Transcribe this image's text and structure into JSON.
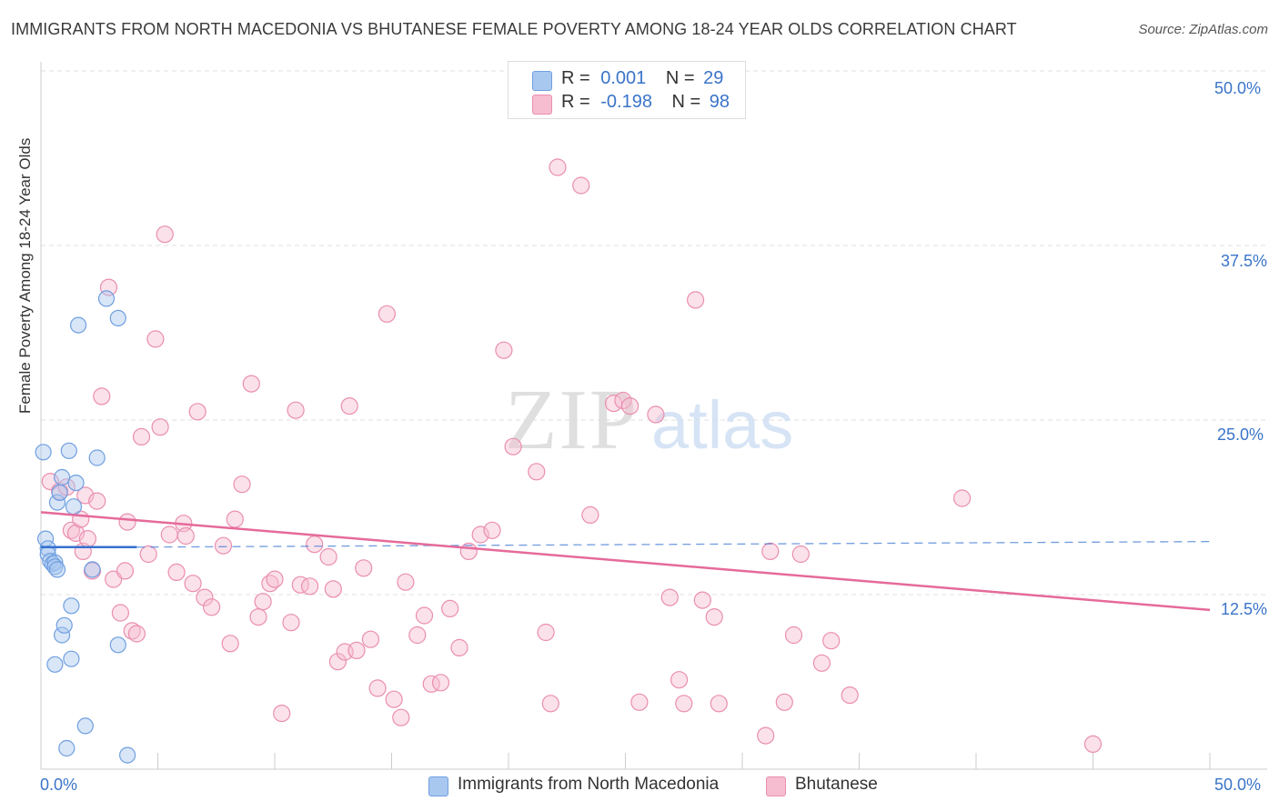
{
  "header": {
    "title": "IMMIGRANTS FROM NORTH MACEDONIA VS BHUTANESE FEMALE POVERTY AMONG 18-24 YEAR OLDS CORRELATION CHART",
    "source": "Source: ZipAtlas.com"
  },
  "watermark": {
    "zip": "ZIP",
    "atlas": "atlas"
  },
  "legend_top": {
    "rows": [
      {
        "r_label": "R =",
        "r_value": "0.001",
        "n_label": "N =",
        "n_value": "29"
      },
      {
        "r_label": "R =",
        "r_value": "-0.198",
        "n_label": "N =",
        "n_value": "98"
      }
    ]
  },
  "legend_bottom": {
    "series1": "Immigrants from North Macedonia",
    "series2": "Bhutanese"
  },
  "colors": {
    "blue_fill": "#a9c8f0",
    "blue_stroke": "#6f9fe0",
    "blue_line": "#3570d0",
    "pink_fill": "#f6bdd0",
    "pink_stroke": "#ea8eb0",
    "pink_line": "#e56a9a",
    "axis_label": "#3a74c9",
    "grid": "#dfdfdf"
  },
  "chart_data": {
    "type": "scatter",
    "title": "IMMIGRANTS FROM NORTH MACEDONIA VS BHUTANESE FEMALE POVERTY AMONG 18-24 YEAR OLDS CORRELATION CHART",
    "xlabel": "",
    "ylabel": "Female Poverty Among 18-24 Year Olds",
    "xlim": [
      0,
      50
    ],
    "ylim": [
      0,
      50
    ],
    "x_tick_labels": [
      "0.0%",
      "50.0%"
    ],
    "y_tick_labels": [
      "12.5%",
      "25.0%",
      "37.5%",
      "50.0%"
    ],
    "y_ticks": [
      12.5,
      25.0,
      37.5,
      50.0
    ],
    "grid": true,
    "legend_position": "top-center",
    "series": [
      {
        "name": "Immigrants from North Macedonia",
        "color": "blue",
        "r": 0.001,
        "n": 29,
        "trend": {
          "x0": 0.0,
          "y0": 15.9,
          "x1": 4.1,
          "y1": 15.9,
          "dashed_to_x": 50.0,
          "dashed_end_y": 16.3
        },
        "points": [
          [
            0.1,
            22.7
          ],
          [
            0.2,
            16.5
          ],
          [
            0.3,
            15.8
          ],
          [
            0.3,
            15.4
          ],
          [
            0.4,
            14.9
          ],
          [
            0.5,
            14.7
          ],
          [
            0.6,
            14.8
          ],
          [
            0.6,
            14.5
          ],
          [
            0.7,
            14.3
          ],
          [
            0.7,
            19.1
          ],
          [
            0.8,
            19.8
          ],
          [
            0.9,
            20.9
          ],
          [
            0.9,
            9.6
          ],
          [
            1.0,
            10.3
          ],
          [
            1.1,
            1.5
          ],
          [
            1.2,
            22.8
          ],
          [
            1.3,
            7.9
          ],
          [
            1.3,
            11.7
          ],
          [
            1.4,
            18.8
          ],
          [
            1.5,
            20.5
          ],
          [
            1.6,
            31.8
          ],
          [
            1.9,
            3.1
          ],
          [
            2.2,
            14.3
          ],
          [
            2.4,
            22.3
          ],
          [
            2.8,
            33.7
          ],
          [
            3.3,
            32.3
          ],
          [
            3.3,
            8.9
          ],
          [
            3.7,
            1.0
          ],
          [
            0.6,
            7.5
          ]
        ]
      },
      {
        "name": "Bhutanese",
        "color": "pink",
        "r": -0.198,
        "n": 98,
        "trend": {
          "x0": 0.0,
          "y0": 18.4,
          "x1": 50.0,
          "y1": 11.4
        },
        "points": [
          [
            0.4,
            20.6
          ],
          [
            0.8,
            19.9
          ],
          [
            1.1,
            20.2
          ],
          [
            1.3,
            17.1
          ],
          [
            1.5,
            16.9
          ],
          [
            1.7,
            17.9
          ],
          [
            1.8,
            15.6
          ],
          [
            1.9,
            19.6
          ],
          [
            2.0,
            16.5
          ],
          [
            2.2,
            14.2
          ],
          [
            2.4,
            19.2
          ],
          [
            2.6,
            26.7
          ],
          [
            2.9,
            34.5
          ],
          [
            3.1,
            13.6
          ],
          [
            3.4,
            11.2
          ],
          [
            3.6,
            14.2
          ],
          [
            3.7,
            17.7
          ],
          [
            3.9,
            9.9
          ],
          [
            4.1,
            9.7
          ],
          [
            4.3,
            23.8
          ],
          [
            4.6,
            15.4
          ],
          [
            4.9,
            30.8
          ],
          [
            5.1,
            24.5
          ],
          [
            5.3,
            38.3
          ],
          [
            5.5,
            16.8
          ],
          [
            5.8,
            14.1
          ],
          [
            6.1,
            17.6
          ],
          [
            6.2,
            16.7
          ],
          [
            6.5,
            13.3
          ],
          [
            6.7,
            25.6
          ],
          [
            7.0,
            12.3
          ],
          [
            7.3,
            11.6
          ],
          [
            7.8,
            16.0
          ],
          [
            8.1,
            9.0
          ],
          [
            8.3,
            17.9
          ],
          [
            8.6,
            20.4
          ],
          [
            9.0,
            27.6
          ],
          [
            9.3,
            10.9
          ],
          [
            9.5,
            12.0
          ],
          [
            9.8,
            13.3
          ],
          [
            10.0,
            13.6
          ],
          [
            10.3,
            4.0
          ],
          [
            10.7,
            10.5
          ],
          [
            10.9,
            25.7
          ],
          [
            11.1,
            13.2
          ],
          [
            11.5,
            13.1
          ],
          [
            11.7,
            16.1
          ],
          [
            12.3,
            15.2
          ],
          [
            12.5,
            12.9
          ],
          [
            12.7,
            7.7
          ],
          [
            13.0,
            8.4
          ],
          [
            13.2,
            26.0
          ],
          [
            13.5,
            8.5
          ],
          [
            13.8,
            14.4
          ],
          [
            14.1,
            9.3
          ],
          [
            14.4,
            5.8
          ],
          [
            14.8,
            32.6
          ],
          [
            15.1,
            5.0
          ],
          [
            15.4,
            3.7
          ],
          [
            15.6,
            13.4
          ],
          [
            16.1,
            9.6
          ],
          [
            16.4,
            11.0
          ],
          [
            16.7,
            6.1
          ],
          [
            17.1,
            6.2
          ],
          [
            17.5,
            11.5
          ],
          [
            17.9,
            8.7
          ],
          [
            18.3,
            15.6
          ],
          [
            18.8,
            16.8
          ],
          [
            19.3,
            17.1
          ],
          [
            19.8,
            30.0
          ],
          [
            20.2,
            23.1
          ],
          [
            21.2,
            21.3
          ],
          [
            21.6,
            9.8
          ],
          [
            21.8,
            4.7
          ],
          [
            22.1,
            43.1
          ],
          [
            23.1,
            41.8
          ],
          [
            23.5,
            18.2
          ],
          [
            24.5,
            26.2
          ],
          [
            24.9,
            26.4
          ],
          [
            25.2,
            26.0
          ],
          [
            25.6,
            4.8
          ],
          [
            26.3,
            25.4
          ],
          [
            26.9,
            12.3
          ],
          [
            27.3,
            6.4
          ],
          [
            27.5,
            4.7
          ],
          [
            28.0,
            33.6
          ],
          [
            28.3,
            12.1
          ],
          [
            28.8,
            10.9
          ],
          [
            29.0,
            4.7
          ],
          [
            31.0,
            2.4
          ],
          [
            31.2,
            15.6
          ],
          [
            31.8,
            4.8
          ],
          [
            32.2,
            9.6
          ],
          [
            32.5,
            15.4
          ],
          [
            33.4,
            7.6
          ],
          [
            33.8,
            9.2
          ],
          [
            34.6,
            5.3
          ],
          [
            39.4,
            19.4
          ],
          [
            45.0,
            1.8
          ]
        ]
      }
    ]
  }
}
